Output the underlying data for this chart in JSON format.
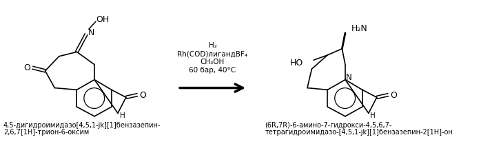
{
  "bg_color": "#ffffff",
  "reaction_conditions": {
    "lines": [
      "H₂",
      "Rh(COD)лигандBF₄",
      "CH₃OH",
      "60 бар, 40°C"
    ],
    "fontsize": 7.5
  },
  "left_label": {
    "lines": [
      "4,5-дигидроимидазо[4,5,1-jk][1]бензазепин-",
      "2,6,7[1H]-трион-6-оксим"
    ],
    "fontsize": 7.0
  },
  "right_label": {
    "lines": [
      "(6R,7R)-6-амино-7-гидрокси-4,5,6,7-",
      "тетрагидроимидазо-[4,5,1-jk][1]бензазепин-2[1H]-он"
    ],
    "fontsize": 7.0
  }
}
